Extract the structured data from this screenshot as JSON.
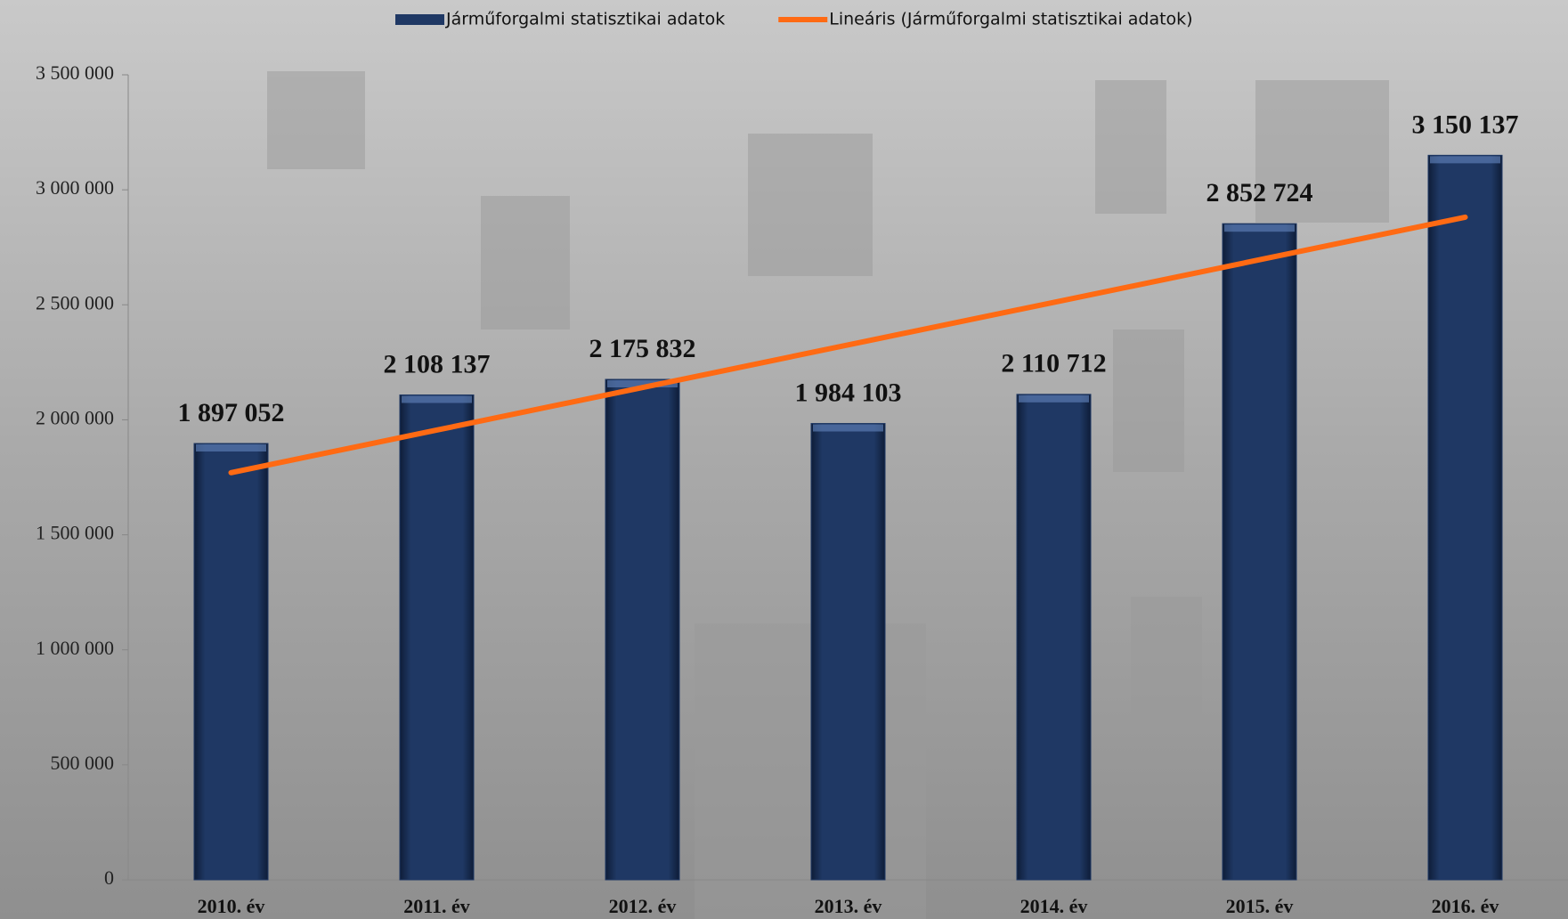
{
  "chart_data": {
    "type": "bar",
    "categories": [
      "2010. év",
      "2011. év",
      "2012. év",
      "2013. év",
      "2014. év",
      "2015. év",
      "2016. év"
    ],
    "series": [
      {
        "name": "Járműforgalmi statisztikai adatok",
        "color": "#1f3864",
        "values": [
          1897052,
          2108137,
          2175832,
          1984103,
          2110712,
          2852724,
          3150137
        ],
        "value_labels": [
          "1 897 052",
          "2 108 137",
          "2 175 832",
          "1 984 103",
          "2 110 712",
          "2 852 724",
          "3 150 137"
        ]
      },
      {
        "name": "Lineáris (Járműforgalmi statisztikai adatok)",
        "type": "line",
        "color": "#ff6a13",
        "values": [
          1770174,
          1955292,
          2140410,
          2325528,
          2510646,
          2695764,
          2880882
        ]
      }
    ],
    "ylim": [
      0,
      3500000
    ],
    "yticks": [
      0,
      {
        "value": 500000,
        "label": "500 000"
      },
      {
        "value": 1000000,
        "label": "1 000 000"
      },
      {
        "value": 1500000,
        "label": "1 500 000"
      },
      {
        "value": 2000000,
        "label": "2 000 000"
      },
      {
        "value": 2500000,
        "label": "2 500 000"
      },
      {
        "value": 3000000,
        "label": "3 000 000"
      },
      {
        "value": 3500000,
        "label": "3 500 000"
      }
    ],
    "legend": "top"
  }
}
